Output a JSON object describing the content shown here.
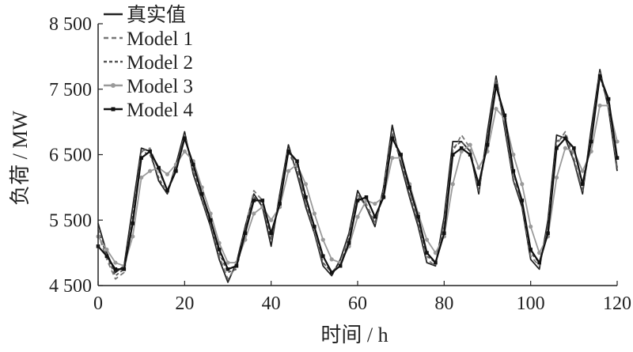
{
  "chart_data": {
    "type": "line",
    "xlabel": "时间 / h",
    "ylabel": "负荷 / MW",
    "xlim": [
      0,
      120
    ],
    "ylim": [
      4500,
      8500
    ],
    "xticks": [
      "0",
      "20",
      "40",
      "60",
      "80",
      "100",
      "120"
    ],
    "yticks": [
      "4 500",
      "5 500",
      "6 500",
      "7 500",
      "8 500"
    ],
    "grid": false,
    "legend_position": "top-left",
    "x": [
      0,
      2,
      4,
      6,
      8,
      10,
      12,
      14,
      16,
      18,
      20,
      22,
      24,
      26,
      28,
      30,
      32,
      34,
      36,
      38,
      40,
      42,
      44,
      46,
      48,
      50,
      52,
      54,
      56,
      58,
      60,
      62,
      64,
      66,
      68,
      70,
      72,
      74,
      76,
      78,
      80,
      82,
      84,
      86,
      88,
      90,
      92,
      94,
      96,
      98,
      100,
      102,
      104,
      106,
      108,
      110,
      112,
      114,
      116,
      118,
      120
    ],
    "series": [
      {
        "name": "真实值",
        "color": "#222222",
        "dash": "",
        "marker": "none",
        "values": [
          5450,
          5000,
          4700,
          4800,
          5700,
          6600,
          6550,
          6100,
          5900,
          6350,
          6850,
          6200,
          5800,
          5400,
          4900,
          4550,
          4850,
          5400,
          5900,
          5700,
          5100,
          5900,
          6650,
          6200,
          5700,
          5300,
          4800,
          4650,
          4900,
          5300,
          5950,
          5700,
          5400,
          6000,
          6950,
          6350,
          5850,
          5400,
          4850,
          4800,
          5550,
          6700,
          6700,
          6550,
          5900,
          6850,
          7700,
          6900,
          6100,
          5700,
          4900,
          4750,
          5500,
          6800,
          6750,
          6400,
          5900,
          6900,
          7800,
          7200,
          6250
        ]
      },
      {
        "name": "Model 1",
        "color": "#777777",
        "dash": "6,4",
        "marker": "none",
        "values": [
          5300,
          4900,
          4600,
          4700,
          5500,
          6550,
          6600,
          6250,
          5950,
          6300,
          6800,
          6250,
          5850,
          5450,
          4950,
          4600,
          4800,
          5350,
          5950,
          5800,
          5250,
          5800,
          6600,
          6300,
          5750,
          5350,
          4850,
          4700,
          4850,
          5250,
          5850,
          5750,
          5450,
          5950,
          6850,
          6450,
          5900,
          5450,
          4900,
          4800,
          5450,
          6550,
          6800,
          6600,
          5950,
          6700,
          7650,
          7000,
          6150,
          5750,
          4950,
          4800,
          5400,
          6650,
          6850,
          6450,
          5950,
          6750,
          7750,
          7300,
          6300
        ]
      },
      {
        "name": "Model 2",
        "color": "#555555",
        "dash": "4,3",
        "marker": "none",
        "values": [
          5350,
          4950,
          4650,
          4750,
          5600,
          6550,
          6500,
          6150,
          5900,
          6300,
          6800,
          6300,
          5800,
          5450,
          5000,
          4700,
          4750,
          5350,
          5850,
          5750,
          5200,
          5850,
          6550,
          6250,
          5750,
          5300,
          4850,
          4700,
          4800,
          5200,
          5900,
          5700,
          5450,
          5900,
          6800,
          6400,
          5900,
          5450,
          4950,
          4850,
          5400,
          6600,
          6700,
          6550,
          5950,
          6750,
          7600,
          6950,
          6100,
          5750,
          5000,
          4850,
          5350,
          6700,
          6800,
          6400,
          5950,
          6800,
          7700,
          7250,
          6300
        ]
      },
      {
        "name": "Model 3",
        "color": "#9a9a9a",
        "dash": "",
        "marker": "circle",
        "values": [
          5250,
          5050,
          4850,
          4800,
          5250,
          6150,
          6250,
          6300,
          6200,
          6350,
          6550,
          6400,
          6000,
          5600,
          5150,
          4850,
          4850,
          5200,
          5600,
          5700,
          5500,
          5700,
          6250,
          6350,
          6050,
          5600,
          5200,
          4900,
          4850,
          5100,
          5550,
          5800,
          5750,
          5850,
          6450,
          6450,
          6050,
          5600,
          5200,
          5000,
          5250,
          6050,
          6550,
          6650,
          6300,
          6550,
          7200,
          7050,
          6500,
          6050,
          5400,
          5000,
          5250,
          6150,
          6600,
          6550,
          6250,
          6550,
          7250,
          7250,
          6700
        ]
      },
      {
        "name": "Model 4",
        "color": "#111111",
        "dash": "",
        "marker": "square",
        "values": [
          5100,
          4950,
          4750,
          4750,
          5450,
          6450,
          6550,
          6300,
          5950,
          6250,
          6750,
          6350,
          5900,
          5500,
          5050,
          4750,
          4800,
          5300,
          5800,
          5800,
          5300,
          5750,
          6550,
          6400,
          5850,
          5400,
          4950,
          4700,
          4800,
          5150,
          5800,
          5850,
          5550,
          5850,
          6750,
          6500,
          6000,
          5550,
          5000,
          4850,
          5300,
          6500,
          6600,
          6500,
          6050,
          6650,
          7550,
          7100,
          6250,
          5800,
          5050,
          4850,
          5300,
          6600,
          6750,
          6600,
          6050,
          6700,
          7700,
          7350,
          6450
        ]
      }
    ]
  }
}
